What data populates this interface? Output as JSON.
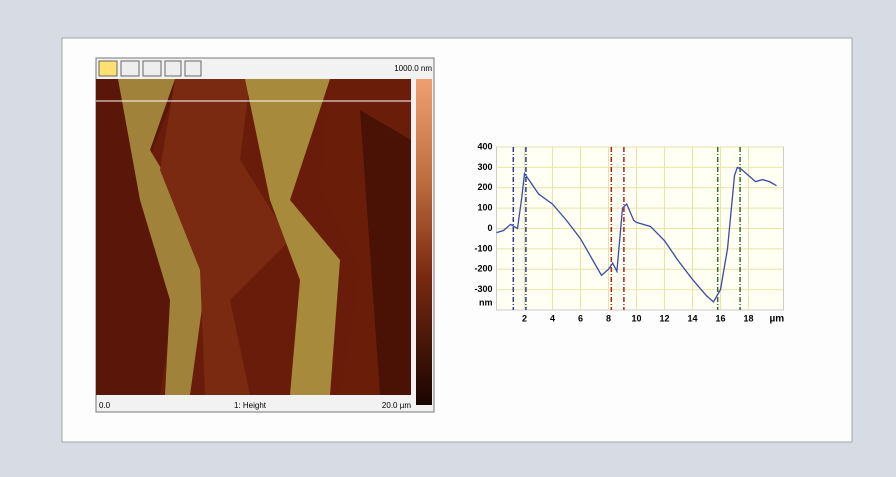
{
  "afm_image": {
    "scale_max": "1000.0 nm",
    "x_start": "0.0",
    "channel": "1: Height",
    "x_end": "20.0 µm"
  },
  "chart_data": {
    "type": "line",
    "x": [
      0,
      0.5,
      1,
      1.5,
      1.8,
      2,
      2.5,
      3,
      4,
      5,
      6,
      7,
      7.5,
      8,
      8.3,
      8.6,
      9,
      9.3,
      9.8,
      10,
      11,
      12,
      13,
      14,
      15,
      15.5,
      16,
      16.5,
      17,
      17.2,
      17.5,
      18,
      18.5,
      19,
      19.5,
      20
    ],
    "series": [
      {
        "color": "#3a4aa8",
        "values": [
          -20,
          -10,
          20,
          0,
          150,
          270,
          220,
          170,
          120,
          40,
          -50,
          -170,
          -230,
          -200,
          -170,
          -210,
          100,
          120,
          40,
          30,
          10,
          -60,
          -160,
          -250,
          -330,
          -360,
          -300,
          -100,
          260,
          300,
          290,
          260,
          230,
          240,
          230,
          210
        ]
      }
    ],
    "xlim": [
      0,
      20.5
    ],
    "xticks": [
      2,
      4,
      6,
      8,
      10,
      12,
      14,
      16,
      18
    ],
    "x_label": "µm",
    "ylim": [
      -400,
      400
    ],
    "yticks": [
      400,
      300,
      200,
      100,
      0,
      -100,
      -200,
      -300
    ],
    "y_label": "nm",
    "grid": true,
    "cursors": [
      {
        "x": 1.2,
        "color": "#2a3aa0"
      },
      {
        "x": 2.1,
        "color": "#2a3aa0"
      },
      {
        "x": 8.2,
        "color": "#b02020"
      },
      {
        "x": 9.1,
        "color": "#b02020"
      },
      {
        "x": 15.8,
        "color": "#3a6a30"
      },
      {
        "x": 17.4,
        "color": "#3a6a30"
      }
    ]
  }
}
